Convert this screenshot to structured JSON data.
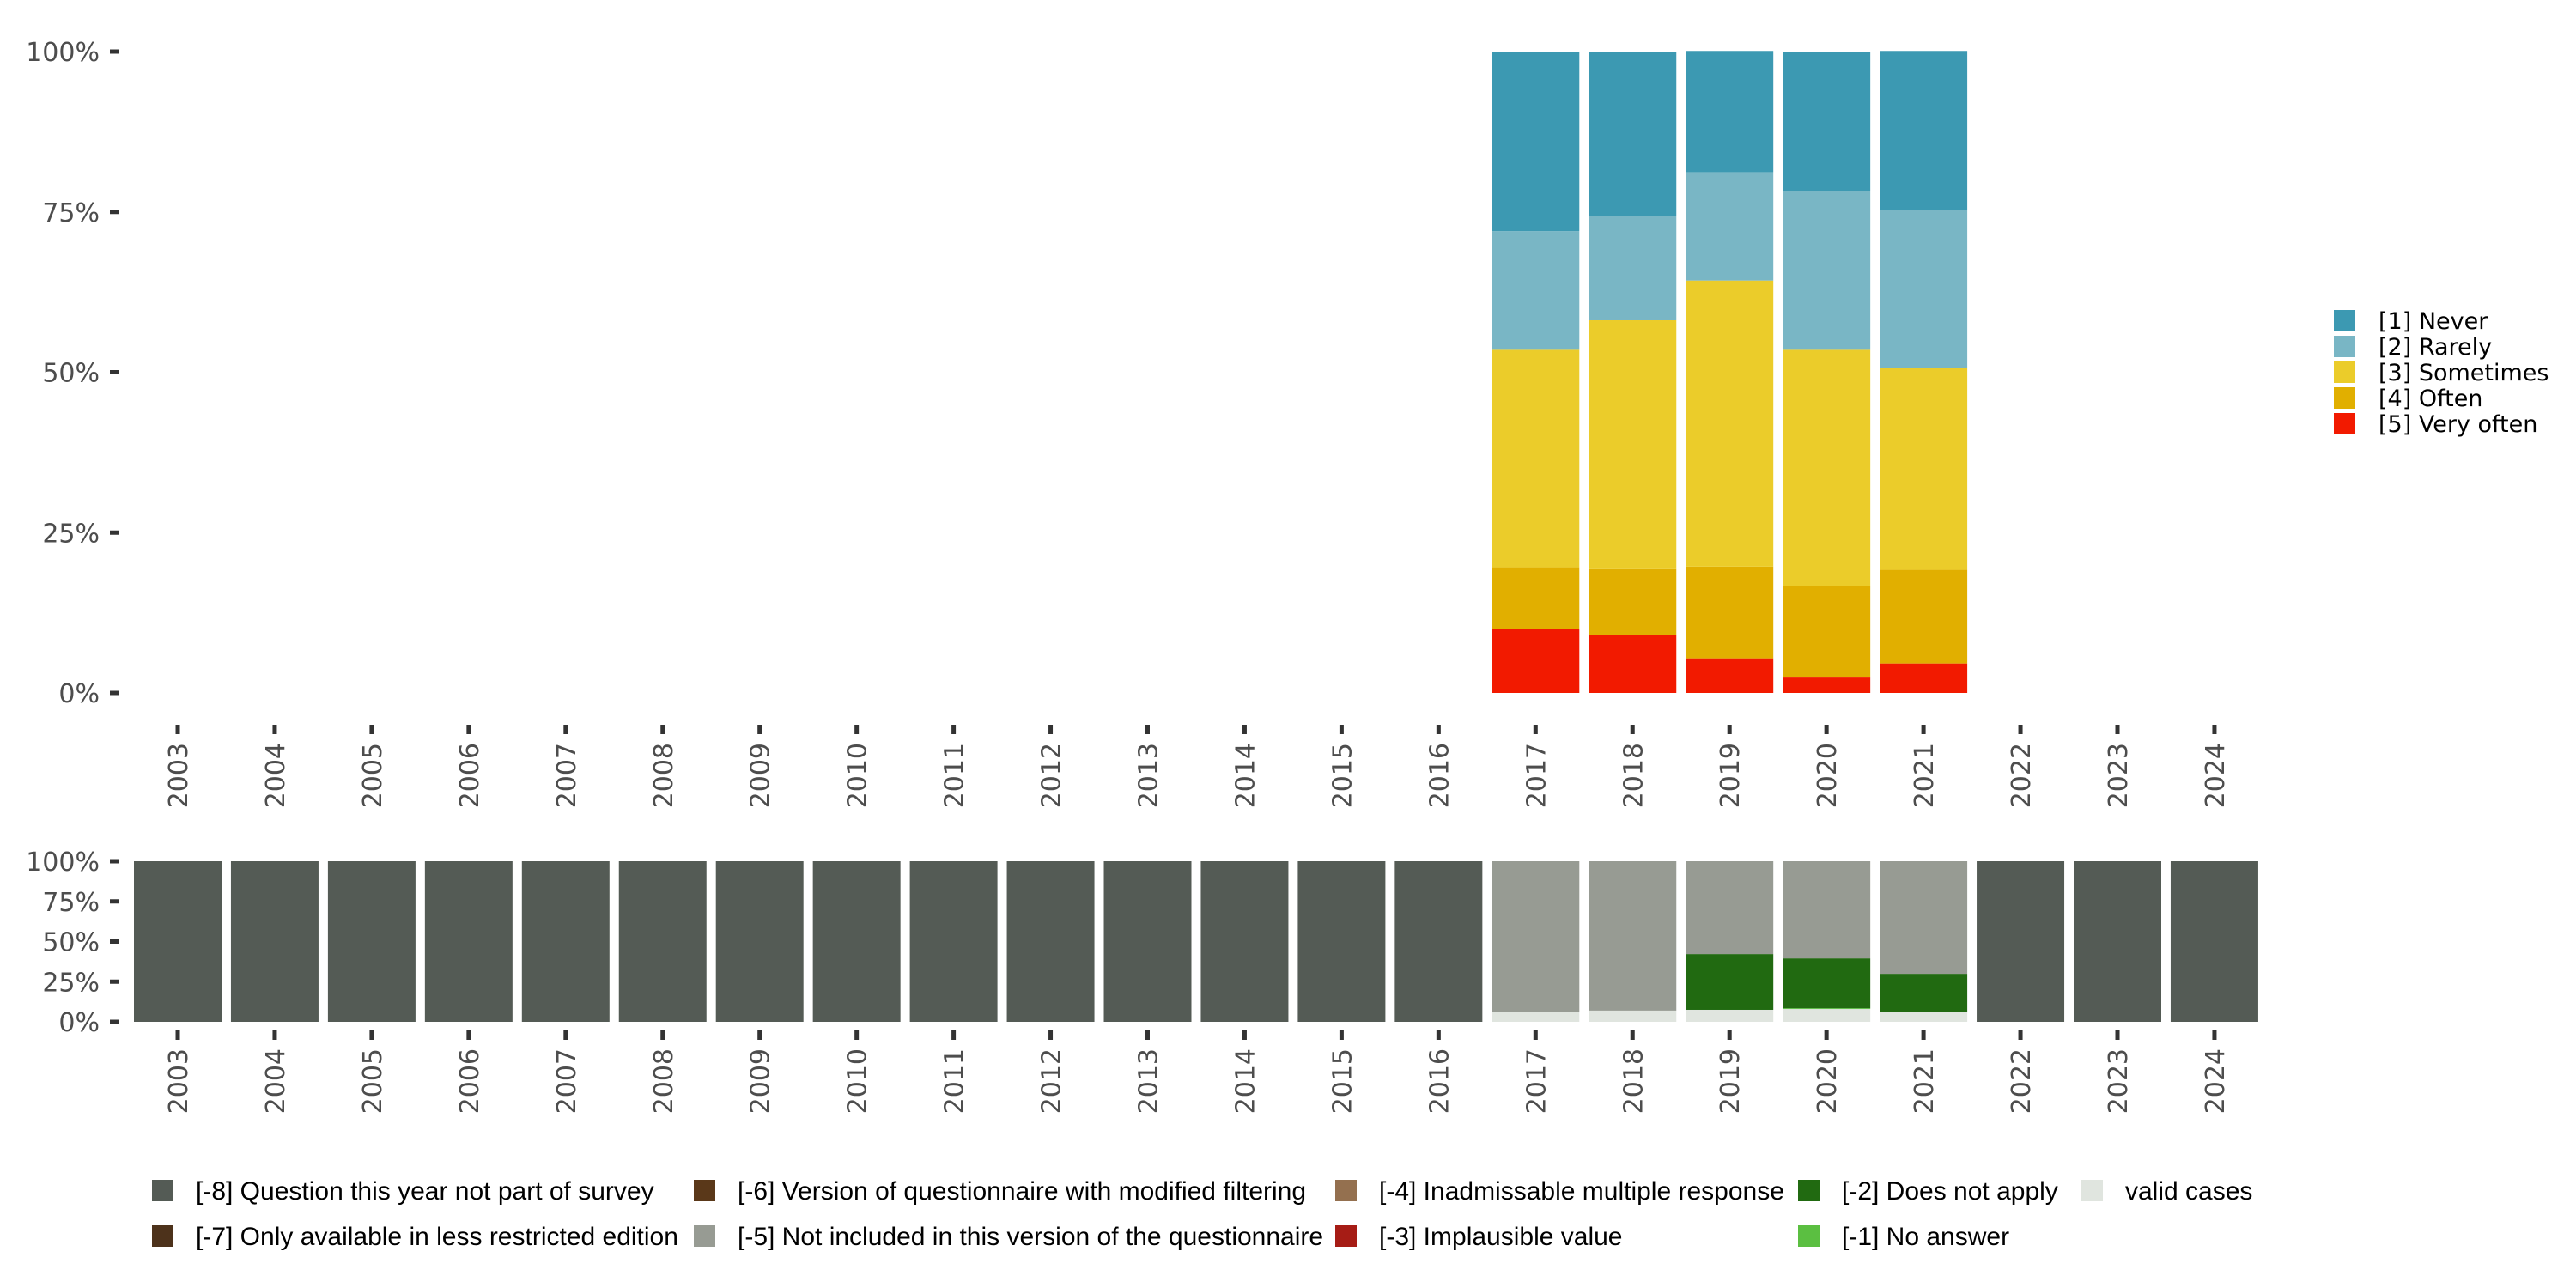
{
  "chart_data": [
    {
      "type": "bar",
      "stacked": true,
      "title": "",
      "xlabel": "",
      "ylabel": "",
      "ylim": [
        0,
        100
      ],
      "y_ticks": [
        "0%",
        "25%",
        "50%",
        "75%",
        "100%"
      ],
      "y_tick_values": [
        0,
        25,
        50,
        75,
        100
      ],
      "grid": false,
      "legend_position": "right",
      "categories": [
        "2003",
        "2004",
        "2005",
        "2006",
        "2007",
        "2008",
        "2009",
        "2010",
        "2011",
        "2012",
        "2013",
        "2014",
        "2015",
        "2016",
        "2017",
        "2018",
        "2019",
        "2020",
        "2021",
        "2022",
        "2023",
        "2024"
      ],
      "series": [
        {
          "name": "[1] Never",
          "color": "#3C99B2",
          "values": [
            null,
            null,
            null,
            null,
            null,
            null,
            null,
            null,
            null,
            null,
            null,
            null,
            null,
            null,
            28.0,
            25.6,
            18.9,
            21.7,
            24.8,
            null,
            null,
            null
          ]
        },
        {
          "name": "[2] Rarely",
          "color": "#79B6C5",
          "values": [
            null,
            null,
            null,
            null,
            null,
            null,
            null,
            null,
            null,
            null,
            null,
            null,
            null,
            null,
            18.5,
            16.3,
            16.9,
            24.8,
            24.6,
            null,
            null,
            null
          ]
        },
        {
          "name": "[3] Sometimes",
          "color": "#EBCC2A",
          "values": [
            null,
            null,
            null,
            null,
            null,
            null,
            null,
            null,
            null,
            null,
            null,
            null,
            null,
            null,
            33.9,
            38.8,
            44.6,
            36.8,
            31.5,
            null,
            null,
            null
          ]
        },
        {
          "name": "[4] Often",
          "color": "#E1AF00",
          "values": [
            null,
            null,
            null,
            null,
            null,
            null,
            null,
            null,
            null,
            null,
            null,
            null,
            null,
            null,
            9.6,
            10.2,
            14.3,
            14.3,
            14.6,
            null,
            null,
            null
          ]
        },
        {
          "name": "[5] Very often",
          "color": "#F21A00",
          "values": [
            null,
            null,
            null,
            null,
            null,
            null,
            null,
            null,
            null,
            null,
            null,
            null,
            null,
            null,
            10.0,
            9.1,
            5.4,
            2.4,
            4.6,
            null,
            null,
            null
          ]
        }
      ]
    },
    {
      "type": "bar",
      "stacked": true,
      "title": "",
      "xlabel": "",
      "ylabel": "",
      "ylim": [
        0,
        100
      ],
      "y_ticks": [
        "0%",
        "25%",
        "50%",
        "75%",
        "100%"
      ],
      "y_tick_values": [
        0,
        25,
        50,
        75,
        100
      ],
      "grid": false,
      "legend_position": "bottom",
      "categories": [
        "2003",
        "2004",
        "2005",
        "2006",
        "2007",
        "2008",
        "2009",
        "2010",
        "2011",
        "2012",
        "2013",
        "2014",
        "2015",
        "2016",
        "2017",
        "2018",
        "2019",
        "2020",
        "2021",
        "2022",
        "2023",
        "2024"
      ],
      "series": [
        {
          "name": "[-8] Question this year not part of survey",
          "color": "#545B55",
          "values": [
            100,
            100,
            100,
            100,
            100,
            100,
            100,
            100,
            100,
            100,
            100,
            100,
            100,
            100,
            0,
            0,
            0,
            0,
            0,
            100,
            100,
            100
          ]
        },
        {
          "name": "[-7] Only available in less restricted edition",
          "color": "#4D321B",
          "values": [
            0,
            0,
            0,
            0,
            0,
            0,
            0,
            0,
            0,
            0,
            0,
            0,
            0,
            0,
            0,
            0,
            0,
            0,
            0,
            0,
            0,
            0
          ]
        },
        {
          "name": "[-6] Version of questionnaire with modified filtering",
          "color": "#5A3819",
          "values": [
            0,
            0,
            0,
            0,
            0,
            0,
            0,
            0,
            0,
            0,
            0,
            0,
            0,
            0,
            0,
            0,
            0,
            0,
            0,
            0,
            0,
            0
          ]
        },
        {
          "name": "[-5] Not included in this version of the questionnaire",
          "color": "#979B93",
          "values": [
            0,
            0,
            0,
            0,
            0,
            0,
            0,
            0,
            0,
            0,
            0,
            0,
            0,
            0,
            93.8,
            93.0,
            57.8,
            60.5,
            70.1,
            0,
            0,
            0
          ]
        },
        {
          "name": "[-4] Inadmissable multiple response",
          "color": "#94704F",
          "values": [
            0,
            0,
            0,
            0,
            0,
            0,
            0,
            0,
            0,
            0,
            0,
            0,
            0,
            0,
            0,
            0,
            0,
            0,
            0,
            0,
            0,
            0
          ]
        },
        {
          "name": "[-3] Implausible value",
          "color": "#A61C15",
          "values": [
            0,
            0,
            0,
            0,
            0,
            0,
            0,
            0,
            0,
            0,
            0,
            0,
            0,
            0,
            0,
            0,
            0,
            0,
            0,
            0,
            0,
            0
          ]
        },
        {
          "name": "[-2] Does not apply",
          "color": "#216A11",
          "values": [
            0,
            0,
            0,
            0,
            0,
            0,
            0,
            0,
            0,
            0,
            0,
            0,
            0,
            0,
            0,
            0,
            34.7,
            31.0,
            24.0,
            0,
            0,
            0
          ]
        },
        {
          "name": "[-1] No answer",
          "color": "#5BBF41",
          "values": [
            0,
            0,
            0,
            0,
            0,
            0,
            0,
            0,
            0,
            0,
            0,
            0,
            0,
            0,
            0.3,
            0,
            0,
            0.5,
            0,
            0,
            0,
            0
          ]
        },
        {
          "name": "valid cases",
          "color": "#E0E5DF",
          "values": [
            0,
            0,
            0,
            0,
            0,
            0,
            0,
            0,
            0,
            0,
            0,
            0,
            0,
            0,
            5.9,
            7.0,
            7.5,
            8.0,
            5.9,
            0,
            0,
            0
          ]
        }
      ]
    }
  ],
  "bottom_legend_layout": [
    [
      "[-8] Question this year not part of survey",
      "[-7] Only available in less restricted edition"
    ],
    [
      "[-6] Version of questionnaire with modified filtering",
      "[-5] Not included in this version of the questionnaire"
    ],
    [
      "[-4] Inadmissable multiple response",
      "[-3] Implausible value"
    ],
    [
      "[-2] Does not apply",
      "[-1] No answer"
    ],
    [
      "valid cases"
    ]
  ]
}
